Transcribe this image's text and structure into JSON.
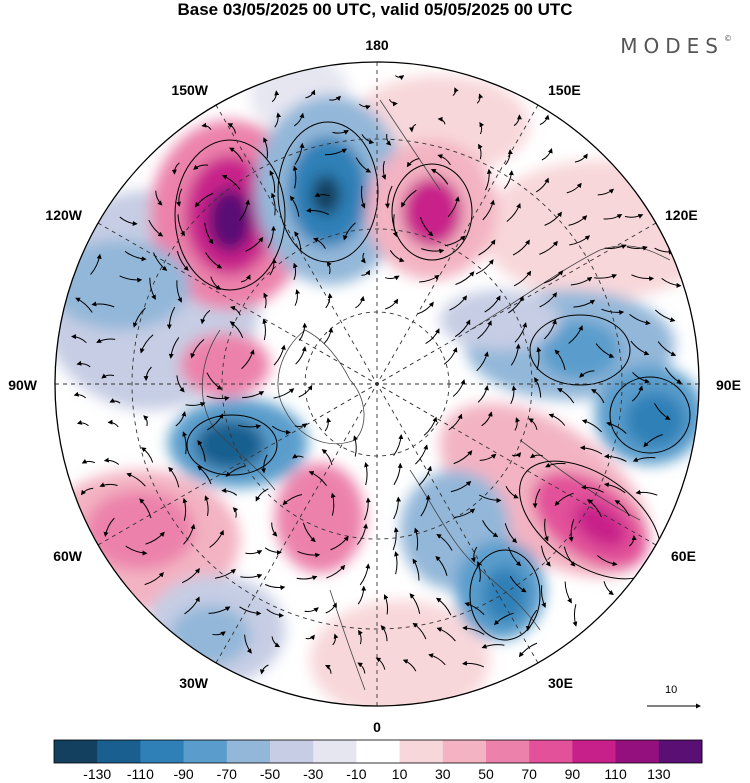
{
  "header": {
    "title": "Base 03/05/2025 00 UTC, valid 05/05/2025 00 UTC",
    "brand": "MODES",
    "brand_mark": "©"
  },
  "map": {
    "projection": "north polar stereographic",
    "longitude_labels": {
      "top": "180",
      "top_right": "150E",
      "right_upper": "120E",
      "right": "90E",
      "right_lower": "60E",
      "bottom_right": "30E",
      "bottom": "0",
      "bottom_left": "30W",
      "left_lower": "60W",
      "left": "90W",
      "left_upper": "120W",
      "top_left": "150W"
    }
  },
  "vector_scale": {
    "label": "10"
  },
  "colorbar": {
    "colors": [
      "#12405e",
      "#195f8f",
      "#2f80b7",
      "#5a9dcc",
      "#93b7d9",
      "#c6cde4",
      "#e6e6f1",
      "#ffffff",
      "#f8d7da",
      "#f3b3c2",
      "#ec82ab",
      "#e2519a",
      "#c8208a",
      "#95107f",
      "#5a0f75"
    ],
    "labels": [
      "-130",
      "-110",
      "-90",
      "-70",
      "-50",
      "-30",
      "-10",
      "10",
      "30",
      "50",
      "70",
      "90",
      "110",
      "130"
    ]
  },
  "colors": {
    "ocean_bg": "#ffffff",
    "coast": "#444444",
    "graticule": "#333333",
    "arrows": "#000000"
  }
}
